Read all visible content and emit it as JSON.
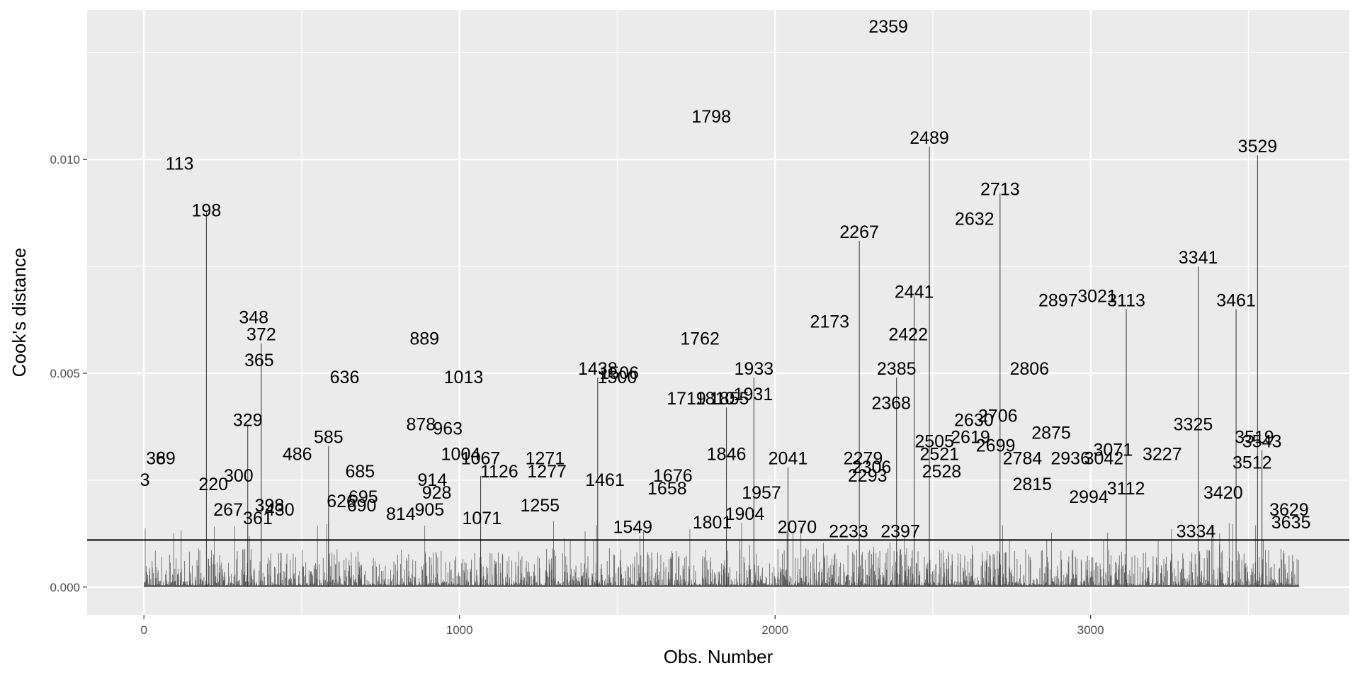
{
  "chart_data": {
    "type": "bar",
    "xlabel": "Obs. Number",
    "ylabel": "Cook's distance",
    "xlim": [
      -180,
      3820
    ],
    "ylim": [
      -0.00065,
      0.0135
    ],
    "x_ticks": [
      0,
      1000,
      2000,
      3000
    ],
    "x_tick_labels": [
      "0",
      "1000",
      "2000",
      "3000"
    ],
    "y_ticks": [
      0.0,
      0.005,
      0.01
    ],
    "y_tick_labels": [
      "0.000",
      "0.005",
      "0.010"
    ],
    "threshold": 0.0011,
    "n_obs": 3660,
    "background_color": "#ebebeb",
    "bar_color": "#595959",
    "threshold_color": "#000000",
    "grid": true,
    "legend": "none",
    "labeled_points": [
      {
        "x": 3,
        "y": 0.0025,
        "label": "3"
      },
      {
        "x": 38,
        "y": 0.003,
        "label": "38"
      },
      {
        "x": 69,
        "y": 0.003,
        "label": "69"
      },
      {
        "x": 113,
        "y": 0.0099,
        "label": "113"
      },
      {
        "x": 198,
        "y": 0.0088,
        "label": "198"
      },
      {
        "x": 220,
        "y": 0.0024,
        "label": "220"
      },
      {
        "x": 267,
        "y": 0.0018,
        "label": "267"
      },
      {
        "x": 300,
        "y": 0.0026,
        "label": "300"
      },
      {
        "x": 329,
        "y": 0.0039,
        "label": "329"
      },
      {
        "x": 348,
        "y": 0.0063,
        "label": "348"
      },
      {
        "x": 365,
        "y": 0.0053,
        "label": "365"
      },
      {
        "x": 372,
        "y": 0.0059,
        "label": "372"
      },
      {
        "x": 361,
        "y": 0.0016,
        "label": "361"
      },
      {
        "x": 398,
        "y": 0.0019,
        "label": "398"
      },
      {
        "x": 430,
        "y": 0.0018,
        "label": "430"
      },
      {
        "x": 486,
        "y": 0.0031,
        "label": "486"
      },
      {
        "x": 585,
        "y": 0.0035,
        "label": "585"
      },
      {
        "x": 636,
        "y": 0.0049,
        "label": "636"
      },
      {
        "x": 685,
        "y": 0.0027,
        "label": "685"
      },
      {
        "x": 626,
        "y": 0.002,
        "label": "626"
      },
      {
        "x": 695,
        "y": 0.0021,
        "label": "695"
      },
      {
        "x": 690,
        "y": 0.0019,
        "label": "690"
      },
      {
        "x": 814,
        "y": 0.0017,
        "label": "814"
      },
      {
        "x": 889,
        "y": 0.0058,
        "label": "889"
      },
      {
        "x": 878,
        "y": 0.0038,
        "label": "878"
      },
      {
        "x": 963,
        "y": 0.0037,
        "label": "963"
      },
      {
        "x": 914,
        "y": 0.0025,
        "label": "914"
      },
      {
        "x": 928,
        "y": 0.0022,
        "label": "928"
      },
      {
        "x": 905,
        "y": 0.0018,
        "label": "905"
      },
      {
        "x": 1013,
        "y": 0.0049,
        "label": "1013"
      },
      {
        "x": 1004,
        "y": 0.0031,
        "label": "1004"
      },
      {
        "x": 1067,
        "y": 0.003,
        "label": "1067"
      },
      {
        "x": 1071,
        "y": 0.0016,
        "label": "1071"
      },
      {
        "x": 1126,
        "y": 0.0027,
        "label": "1126"
      },
      {
        "x": 1271,
        "y": 0.003,
        "label": "1271"
      },
      {
        "x": 1277,
        "y": 0.0027,
        "label": "1277"
      },
      {
        "x": 1255,
        "y": 0.0019,
        "label": "1255"
      },
      {
        "x": 1438,
        "y": 0.0051,
        "label": "1438"
      },
      {
        "x": 1500,
        "y": 0.0049,
        "label": "1500"
      },
      {
        "x": 1506,
        "y": 0.005,
        "label": "1506"
      },
      {
        "x": 1461,
        "y": 0.0025,
        "label": "1461"
      },
      {
        "x": 1549,
        "y": 0.0014,
        "label": "1549"
      },
      {
        "x": 1676,
        "y": 0.0026,
        "label": "1676"
      },
      {
        "x": 1658,
        "y": 0.0023,
        "label": "1658"
      },
      {
        "x": 1762,
        "y": 0.0058,
        "label": "1762"
      },
      {
        "x": 1798,
        "y": 0.011,
        "label": "1798"
      },
      {
        "x": 1719,
        "y": 0.0044,
        "label": "1719"
      },
      {
        "x": 1810,
        "y": 0.0044,
        "label": "1810"
      },
      {
        "x": 1855,
        "y": 0.0044,
        "label": "1855"
      },
      {
        "x": 1931,
        "y": 0.0045,
        "label": "1931"
      },
      {
        "x": 1933,
        "y": 0.0051,
        "label": "1933"
      },
      {
        "x": 1846,
        "y": 0.0031,
        "label": "1846"
      },
      {
        "x": 1957,
        "y": 0.0022,
        "label": "1957"
      },
      {
        "x": 1801,
        "y": 0.0015,
        "label": "1801"
      },
      {
        "x": 1904,
        "y": 0.0017,
        "label": "1904"
      },
      {
        "x": 2041,
        "y": 0.003,
        "label": "2041"
      },
      {
        "x": 2070,
        "y": 0.0014,
        "label": "2070"
      },
      {
        "x": 2173,
        "y": 0.0062,
        "label": "2173"
      },
      {
        "x": 2233,
        "y": 0.0013,
        "label": "2233"
      },
      {
        "x": 2267,
        "y": 0.0083,
        "label": "2267"
      },
      {
        "x": 2279,
        "y": 0.003,
        "label": "2279"
      },
      {
        "x": 2293,
        "y": 0.0026,
        "label": "2293"
      },
      {
        "x": 2306,
        "y": 0.0028,
        "label": "2306"
      },
      {
        "x": 2368,
        "y": 0.0043,
        "label": "2368"
      },
      {
        "x": 2385,
        "y": 0.0051,
        "label": "2385"
      },
      {
        "x": 2397,
        "y": 0.0013,
        "label": "2397"
      },
      {
        "x": 2422,
        "y": 0.0059,
        "label": "2422"
      },
      {
        "x": 2441,
        "y": 0.0069,
        "label": "2441"
      },
      {
        "x": 2489,
        "y": 0.0105,
        "label": "2489"
      },
      {
        "x": 2505,
        "y": 0.0034,
        "label": "2505"
      },
      {
        "x": 2521,
        "y": 0.0031,
        "label": "2521"
      },
      {
        "x": 2528,
        "y": 0.0027,
        "label": "2528"
      },
      {
        "x": 2619,
        "y": 0.0035,
        "label": "2619"
      },
      {
        "x": 2630,
        "y": 0.0039,
        "label": "2630"
      },
      {
        "x": 2632,
        "y": 0.0086,
        "label": "2632"
      },
      {
        "x": 2699,
        "y": 0.0033,
        "label": "2699"
      },
      {
        "x": 2706,
        "y": 0.004,
        "label": "2706"
      },
      {
        "x": 2713,
        "y": 0.0093,
        "label": "2713"
      },
      {
        "x": 2784,
        "y": 0.003,
        "label": "2784"
      },
      {
        "x": 2806,
        "y": 0.0051,
        "label": "2806"
      },
      {
        "x": 2815,
        "y": 0.0024,
        "label": "2815"
      },
      {
        "x": 2875,
        "y": 0.0036,
        "label": "2875"
      },
      {
        "x": 2897,
        "y": 0.0067,
        "label": "2897"
      },
      {
        "x": 2936,
        "y": 0.003,
        "label": "2936"
      },
      {
        "x": 2994,
        "y": 0.0021,
        "label": "2994"
      },
      {
        "x": 3021,
        "y": 0.0068,
        "label": "3021"
      },
      {
        "x": 3042,
        "y": 0.003,
        "label": "3042"
      },
      {
        "x": 3071,
        "y": 0.0032,
        "label": "3071"
      },
      {
        "x": 3113,
        "y": 0.0067,
        "label": "3113"
      },
      {
        "x": 3112,
        "y": 0.0023,
        "label": "3112"
      },
      {
        "x": 3227,
        "y": 0.0031,
        "label": "3227"
      },
      {
        "x": 3325,
        "y": 0.0038,
        "label": "3325"
      },
      {
        "x": 3334,
        "y": 0.0013,
        "label": "3334"
      },
      {
        "x": 3341,
        "y": 0.0077,
        "label": "3341"
      },
      {
        "x": 3420,
        "y": 0.0022,
        "label": "3420"
      },
      {
        "x": 3461,
        "y": 0.0067,
        "label": "3461"
      },
      {
        "x": 3512,
        "y": 0.0029,
        "label": "3512"
      },
      {
        "x": 3519,
        "y": 0.0035,
        "label": "3519"
      },
      {
        "x": 3529,
        "y": 0.0103,
        "label": "3529"
      },
      {
        "x": 3543,
        "y": 0.0034,
        "label": "3543"
      },
      {
        "x": 3629,
        "y": 0.0018,
        "label": "3629"
      },
      {
        "x": 3635,
        "y": 0.0015,
        "label": "3635"
      },
      {
        "x": 2359,
        "y": 0.0131,
        "label": "2359"
      }
    ],
    "labeled_stems": [
      {
        "x": 198,
        "y": 0.0088
      },
      {
        "x": 329,
        "y": 0.0038
      },
      {
        "x": 372,
        "y": 0.0057
      },
      {
        "x": 585,
        "y": 0.0033
      },
      {
        "x": 1067,
        "y": 0.0026
      },
      {
        "x": 1438,
        "y": 0.0049
      },
      {
        "x": 1846,
        "y": 0.0042
      },
      {
        "x": 1933,
        "y": 0.0049
      },
      {
        "x": 2041,
        "y": 0.0028
      },
      {
        "x": 2267,
        "y": 0.0081
      },
      {
        "x": 2385,
        "y": 0.0049
      },
      {
        "x": 2441,
        "y": 0.0068
      },
      {
        "x": 2489,
        "y": 0.0103
      },
      {
        "x": 2713,
        "y": 0.0092
      },
      {
        "x": 3113,
        "y": 0.0065
      },
      {
        "x": 3341,
        "y": 0.0075
      },
      {
        "x": 3461,
        "y": 0.0065
      },
      {
        "x": 3529,
        "y": 0.0101
      },
      {
        "x": 3543,
        "y": 0.0032
      }
    ]
  }
}
